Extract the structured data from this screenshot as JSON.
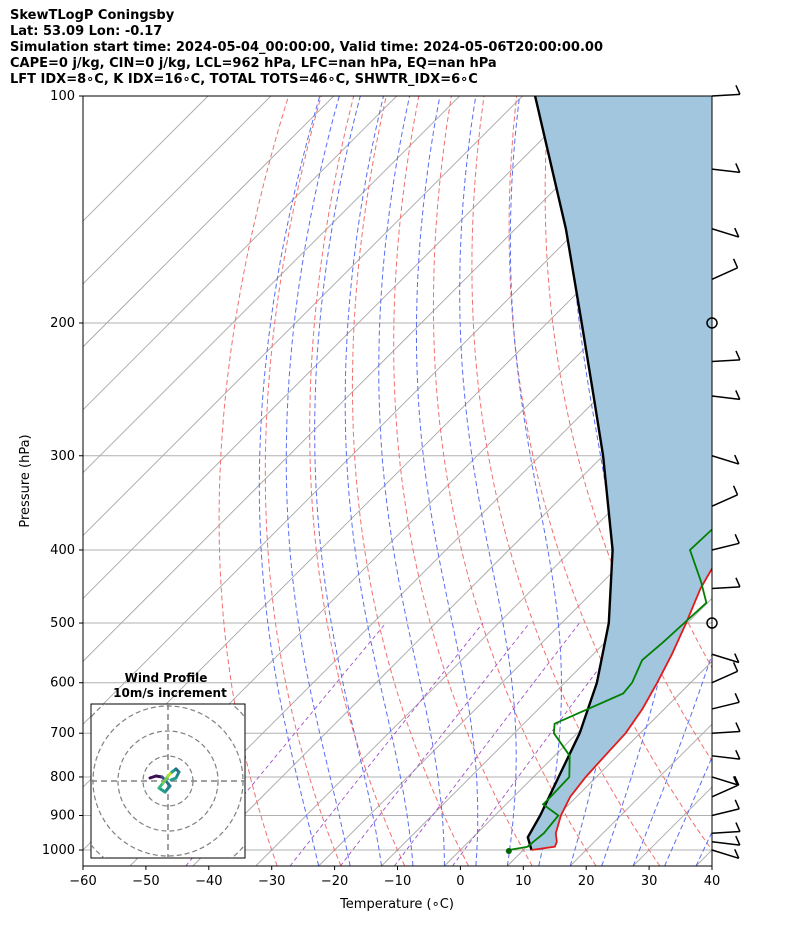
{
  "header": {
    "line1": "SkewTLogP Coningsby",
    "line2": "Lat: 53.09   Lon: -0.17",
    "line3": "Simulation start time: 2024-05-04_00:00:00, Valid time: 2024-05-06T20:00:00.00",
    "line4": "CAPE=0 j/kg, CIN=0 j/kg, LCL=962 hPa, LFC=nan hPa, EQ=nan hPa",
    "line5": "LFT IDX=8∘C, K IDX=16∘C, TOTAL TOTS=46∘C, SHWTR_IDX=6∘C"
  },
  "chart_data": {
    "type": "line",
    "xlabel": "Temperature (∘C)",
    "ylabel": "Pressure (hPa)",
    "xlim": [
      -60,
      40
    ],
    "ylim": [
      1050,
      100
    ],
    "x_ticks": [
      "−60",
      "−50",
      "−40",
      "−30",
      "−20",
      "−10",
      "0",
      "10",
      "20",
      "30",
      "40"
    ],
    "y_ticks": [
      "100",
      "200",
      "300",
      "400",
      "500",
      "600",
      "700",
      "800",
      "900",
      "1000"
    ],
    "y_scale": "log",
    "skew": "45 degrees",
    "grid": true,
    "series": [
      {
        "color": "#e31a1c",
        "points": [
          [
            1000,
            11.3
          ],
          [
            990,
            14.5
          ],
          [
            975,
            14.0
          ],
          [
            950,
            12.5
          ],
          [
            900,
            10.5
          ],
          [
            850,
            9.0
          ],
          [
            800,
            8.3
          ],
          [
            750,
            8.0
          ],
          [
            700,
            7.7
          ],
          [
            650,
            6.5
          ],
          [
            600,
            4.7
          ],
          [
            550,
            2.5
          ],
          [
            500,
            -0.2
          ],
          [
            450,
            -3.4
          ],
          [
            400,
            -6.0
          ],
          [
            350,
            -10.5
          ],
          [
            300,
            -17.0
          ],
          [
            275,
            -20.5
          ],
          [
            260,
            -20.6
          ],
          [
            250,
            -17.0
          ],
          [
            230,
            -11.5
          ],
          [
            200,
            -4.8
          ],
          [
            170,
            -2.0
          ],
          [
            150,
            -2.6
          ],
          [
            130,
            -6.0
          ],
          [
            115,
            -10.0
          ],
          [
            100,
            -14.5
          ]
        ]
      },
      {
        "color": "#008000",
        "points": [
          [
            1000,
            7.7
          ],
          [
            990,
            10.2
          ],
          [
            975,
            10.3
          ],
          [
            950,
            10.6
          ],
          [
            900,
            10.1
          ],
          [
            870,
            5.9
          ],
          [
            850,
            5.9
          ],
          [
            800,
            5.7
          ],
          [
            750,
            2.4
          ],
          [
            700,
            -3.7
          ],
          [
            680,
            -5.1
          ],
          [
            620,
            1.0
          ],
          [
            600,
            0.7
          ],
          [
            560,
            -1.3
          ],
          [
            530,
            -0.8
          ],
          [
            500,
            -0.5
          ],
          [
            470,
            -0.2
          ],
          [
            440,
            -4.5
          ],
          [
            400,
            -11.2
          ],
          [
            350,
            -10.7
          ],
          [
            320,
            -12.8
          ],
          [
            300,
            -15.0
          ],
          [
            275,
            -20.0
          ],
          [
            255,
            -21.8
          ],
          [
            230,
            -22.0
          ],
          [
            210,
            -24.5
          ],
          [
            190,
            -29.0
          ],
          [
            170,
            -32.5
          ],
          [
            150,
            -32.5
          ],
          [
            130,
            -32.5
          ],
          [
            115,
            -33.5
          ],
          [
            100,
            -34.5
          ]
        ]
      },
      {
        "color": "#000000",
        "points": [
          [
            1000,
            11.3
          ],
          [
            962,
            8.7
          ],
          [
            900,
            7.2
          ],
          [
            800,
            4.0
          ],
          [
            700,
            0.4
          ],
          [
            600,
            -4.9
          ],
          [
            500,
            -12.5
          ],
          [
            400,
            -23.5
          ],
          [
            300,
            -40.0
          ],
          [
            250,
            -51.0
          ],
          [
            200,
            -64.5
          ],
          [
            150,
            -82.0
          ],
          [
            100,
            -108.0
          ]
        ]
      }
    ],
    "wind_barbs_pressures": [
      1000,
      975,
      950,
      900,
      850,
      800,
      750,
      700,
      650,
      600,
      550,
      500,
      450,
      400,
      350,
      300,
      250,
      225,
      200,
      175,
      150,
      125,
      100
    ],
    "hodograph": {
      "title": "Wind Profile",
      "subtitle": "10m/s increment",
      "rings": [
        10,
        20,
        30,
        40
      ]
    }
  }
}
